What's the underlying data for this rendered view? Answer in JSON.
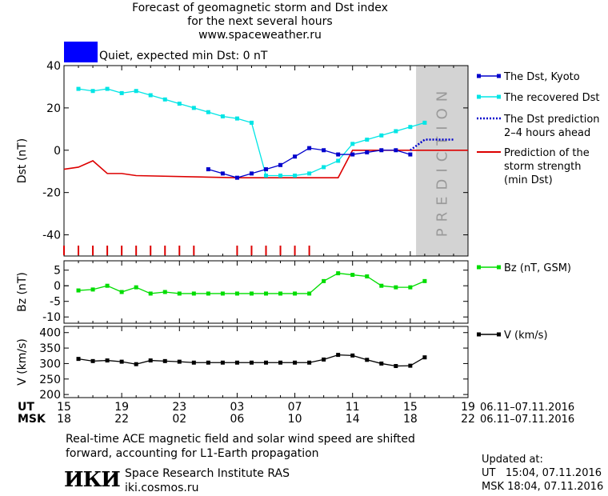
{
  "title": {
    "line1": "Forecast of geomagnetic storm and Dst index",
    "line2": "for the next several hours",
    "line3": "www.spaceweather.ru"
  },
  "status": {
    "text": "Quiet, expected min Dst: 0 nT",
    "color": "#0000ff"
  },
  "prediction_label": "PREDICTION",
  "legend": {
    "dst_kyoto": "The Dst, Kyoto",
    "recovered": "The recovered Dst",
    "prediction_line1": "The Dst prediction",
    "prediction_line2": "2–4 hours ahead",
    "storm_line1": "Prediction of the",
    "storm_line2": "storm strength",
    "storm_line3": "(min Dst)",
    "bz": "Bz (nT, GSM)",
    "v": "V (km/s)"
  },
  "x_axis": {
    "ut_label": "UT",
    "msk_label": "MSK",
    "ut_ticks": [
      "15",
      "19",
      "23",
      "03",
      "07",
      "11",
      "15",
      "19"
    ],
    "msk_ticks": [
      "18",
      "22",
      "02",
      "06",
      "10",
      "14",
      "18",
      "22"
    ],
    "ut_range": "06.11–07.11.2016",
    "msk_range": "06.11–07.11.2016"
  },
  "footnote": {
    "line1": "Real-time ACE magnetic field and solar wind speed are shifted",
    "line2": "forward, accounting for L1-Earth propagation"
  },
  "updated": {
    "label": "Updated at:",
    "ut": "UT   15:04, 07.11.2016",
    "msk": "MSK 18:04, 07.11.2016"
  },
  "institute": {
    "logo": "ИКИ",
    "name": "Space Research Institute RAS",
    "url": "iki.cosmos.ru"
  },
  "colors": {
    "dst_kyoto": "#0000cc",
    "recovered": "#00e5e5",
    "prediction": "#0000cc",
    "storm": "#dd0000",
    "bz": "#00dd00",
    "v": "#000000",
    "prediction_band": "#d3d3d3"
  },
  "chart_data": [
    {
      "type": "line",
      "ylabel": "Dst (nT)",
      "ylim": [
        -50,
        40
      ],
      "yticks": [
        40,
        20,
        0,
        -20,
        -40
      ],
      "x_unit": "hours since 15 UT 06.11",
      "xlim": [
        0,
        28
      ],
      "prediction_region": [
        24.4,
        28
      ],
      "series": [
        {
          "name": "The Dst, Kyoto",
          "x": [
            10,
            11,
            12,
            13,
            14,
            15,
            16,
            17,
            18,
            19,
            20,
            21,
            22,
            23,
            24
          ],
          "y": [
            -9,
            -11,
            -13,
            -11,
            -9,
            -7,
            -3,
            1,
            0,
            -2,
            -2,
            -1,
            0,
            0,
            -2
          ]
        },
        {
          "name": "The recovered Dst",
          "x": [
            1,
            2,
            3,
            4,
            5,
            6,
            7,
            8,
            9,
            10,
            11,
            12,
            13,
            14,
            15,
            16,
            17,
            18,
            19,
            20,
            21,
            22,
            23,
            24,
            25
          ],
          "y": [
            29,
            28,
            29,
            27,
            28,
            26,
            24,
            22,
            20,
            18,
            16,
            15,
            13,
            -12,
            -12,
            -12,
            -11,
            -8,
            -5,
            3,
            5,
            7,
            9,
            11,
            13
          ]
        },
        {
          "name": "The Dst prediction 2–4 hours ahead",
          "x": [
            24,
            25,
            26,
            27
          ],
          "y": [
            0,
            5,
            5,
            5
          ]
        },
        {
          "name": "Prediction of the storm strength (min Dst)",
          "x": [
            0,
            1,
            2,
            3,
            4,
            5,
            12,
            13,
            14,
            17,
            19,
            20,
            28
          ],
          "y": [
            -9,
            -8,
            -5,
            -11,
            -11,
            -12,
            -13,
            -13,
            -13,
            -13,
            -13,
            0,
            0
          ]
        }
      ],
      "kp_tick_hours": [
        0,
        1,
        2,
        3,
        4,
        5,
        6,
        7,
        8,
        9,
        12,
        13,
        14,
        15,
        16,
        17
      ]
    },
    {
      "type": "line",
      "ylabel": "Bz (nT)",
      "ylim": [
        -12,
        8
      ],
      "yticks": [
        5,
        0,
        -5,
        -10
      ],
      "series": [
        {
          "name": "Bz (nT, GSM)",
          "x": [
            1,
            2,
            3,
            4,
            5,
            6,
            7,
            8,
            9,
            10,
            11,
            12,
            13,
            14,
            15,
            16,
            17,
            18,
            19,
            20,
            21,
            22,
            23,
            24,
            25
          ],
          "y": [
            -1.5,
            -1.2,
            0,
            -2,
            -0.5,
            -2.5,
            -2,
            -2.5,
            -2.5,
            -2.5,
            -2.5,
            -2.5,
            -2.5,
            -2.5,
            -2.5,
            -2.5,
            -2.5,
            1.5,
            4,
            3.5,
            3,
            0,
            -0.5,
            -0.5,
            1.5
          ]
        }
      ]
    },
    {
      "type": "line",
      "ylabel": "V (km/s)",
      "ylim": [
        190,
        420
      ],
      "yticks": [
        400,
        350,
        300,
        250,
        200
      ],
      "series": [
        {
          "name": "V (km/s)",
          "x": [
            1,
            2,
            3,
            4,
            5,
            6,
            7,
            8,
            9,
            10,
            11,
            12,
            13,
            14,
            15,
            16,
            17,
            18,
            19,
            20,
            21,
            22,
            23,
            24,
            25
          ],
          "y": [
            315,
            308,
            310,
            306,
            298,
            310,
            308,
            306,
            303,
            303,
            303,
            303,
            303,
            303,
            303,
            303,
            303,
            313,
            328,
            326,
            312,
            300,
            292,
            293,
            320
          ]
        }
      ]
    }
  ]
}
